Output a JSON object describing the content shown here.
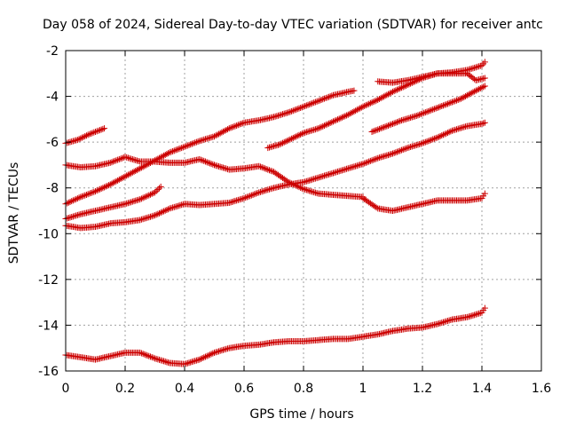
{
  "chart_data": {
    "type": "scatter",
    "title": "Day 058 of 2024, Sidereal Day-to-day VTEC variation (SDTVAR) for receiver antc",
    "xlabel": "GPS time / hours",
    "ylabel": "SDTVAR / TECUs",
    "xlim": [
      0,
      1.6
    ],
    "ylim": [
      -16,
      -2
    ],
    "xticks": [
      0,
      0.2,
      0.4,
      0.6,
      0.8,
      1,
      1.2,
      1.4,
      1.6
    ],
    "xtick_labels": [
      "0",
      "0.2",
      "0.4",
      "0.6",
      "0.8",
      "1",
      "1.2",
      "1.4",
      "1.6"
    ],
    "yticks": [
      -16,
      -14,
      -12,
      -10,
      -8,
      -6,
      -4,
      -2
    ],
    "ytick_labels": [
      "-16",
      "-14",
      "-12",
      "-10",
      "-8",
      "-6",
      "-4",
      "-2"
    ],
    "grid": true,
    "marker": "+",
    "marker_color": "#cc0000",
    "series": [
      {
        "name": "s1",
        "x": [
          0,
          0.04,
          0.08,
          0.12,
          0.13
        ],
        "y": [
          -6.05,
          -5.9,
          -5.65,
          -5.45,
          -5.4
        ]
      },
      {
        "name": "s2",
        "x": [
          0,
          0.05,
          0.1,
          0.15,
          0.2,
          0.25,
          0.3,
          0.35,
          0.4,
          0.45,
          0.5,
          0.55,
          0.6,
          0.65,
          0.7,
          0.75,
          0.8,
          0.85,
          0.9,
          0.95,
          0.97
        ],
        "y": [
          -8.7,
          -8.4,
          -8.15,
          -7.85,
          -7.5,
          -7.15,
          -6.8,
          -6.45,
          -6.2,
          -5.95,
          -5.75,
          -5.4,
          -5.15,
          -5.05,
          -4.9,
          -4.7,
          -4.45,
          -4.2,
          -3.95,
          -3.8,
          -3.75
        ]
      },
      {
        "name": "s3",
        "x": [
          0,
          0.05,
          0.1,
          0.15,
          0.2,
          0.25,
          0.3,
          0.35,
          0.4,
          0.45,
          0.5,
          0.55,
          0.6,
          0.65,
          0.7,
          0.75,
          0.8,
          0.85,
          0.9,
          0.95,
          1.0
        ],
        "y": [
          -7.0,
          -7.1,
          -7.05,
          -6.9,
          -6.65,
          -6.85,
          -6.85,
          -6.9,
          -6.9,
          -6.75,
          -7.0,
          -7.2,
          -7.15,
          -7.05,
          -7.3,
          -7.75,
          -8.05,
          -8.25,
          -8.3,
          -8.35,
          -8.4
        ]
      },
      {
        "name": "s4",
        "x": [
          1.0,
          1.05,
          1.1,
          1.15,
          1.2,
          1.25,
          1.3,
          1.35,
          1.4,
          1.41
        ],
        "y": [
          -8.45,
          -8.9,
          -9.0,
          -8.85,
          -8.7,
          -8.55,
          -8.55,
          -8.55,
          -8.45,
          -8.25
        ]
      },
      {
        "name": "s5",
        "x": [
          0,
          0.05,
          0.1,
          0.15,
          0.2,
          0.25,
          0.3,
          0.32
        ],
        "y": [
          -9.35,
          -9.15,
          -9.0,
          -8.85,
          -8.7,
          -8.5,
          -8.2,
          -7.95
        ]
      },
      {
        "name": "s6",
        "x": [
          0,
          0.05,
          0.1,
          0.15,
          0.2,
          0.25,
          0.3,
          0.35,
          0.4,
          0.45,
          0.5,
          0.55,
          0.6,
          0.65,
          0.7,
          0.75,
          0.8,
          0.85,
          0.9,
          0.95,
          1.0,
          1.05,
          1.1,
          1.15,
          1.2,
          1.25,
          1.3,
          1.35,
          1.4,
          1.41
        ],
        "y": [
          -9.65,
          -9.75,
          -9.7,
          -9.55,
          -9.5,
          -9.4,
          -9.2,
          -8.9,
          -8.7,
          -8.75,
          -8.7,
          -8.65,
          -8.45,
          -8.2,
          -8.0,
          -7.85,
          -7.75,
          -7.55,
          -7.35,
          -7.15,
          -6.95,
          -6.7,
          -6.5,
          -6.25,
          -6.05,
          -5.8,
          -5.5,
          -5.3,
          -5.2,
          -5.15
        ]
      },
      {
        "name": "s7",
        "x": [
          0,
          0.05,
          0.1,
          0.15,
          0.2,
          0.25,
          0.3,
          0.35,
          0.4,
          0.45,
          0.5,
          0.55,
          0.6,
          0.65,
          0.7,
          0.75,
          0.8,
          0.85,
          0.9,
          0.95,
          1.0,
          1.05,
          1.1,
          1.15,
          1.2,
          1.25,
          1.3,
          1.35,
          1.4,
          1.41
        ],
        "y": [
          -15.3,
          -15.4,
          -15.5,
          -15.35,
          -15.2,
          -15.2,
          -15.45,
          -15.65,
          -15.7,
          -15.5,
          -15.2,
          -15.0,
          -14.9,
          -14.85,
          -14.75,
          -14.7,
          -14.7,
          -14.65,
          -14.6,
          -14.6,
          -14.5,
          -14.4,
          -14.25,
          -14.15,
          -14.1,
          -13.95,
          -13.75,
          -13.65,
          -13.45,
          -13.25
        ]
      },
      {
        "name": "s8",
        "x": [
          0.68,
          0.72,
          0.76,
          0.8,
          0.85,
          0.9,
          0.95,
          1.0,
          1.05,
          1.1,
          1.15,
          1.2,
          1.25,
          1.3,
          1.35,
          1.4,
          1.41
        ],
        "y": [
          -6.25,
          -6.1,
          -5.85,
          -5.6,
          -5.4,
          -5.1,
          -4.8,
          -4.45,
          -4.15,
          -3.8,
          -3.5,
          -3.2,
          -3.0,
          -2.95,
          -2.85,
          -2.65,
          -2.5
        ]
      },
      {
        "name": "s9",
        "x": [
          1.05,
          1.1,
          1.15,
          1.2,
          1.25,
          1.3,
          1.35,
          1.38,
          1.41
        ],
        "y": [
          -3.35,
          -3.4,
          -3.3,
          -3.15,
          -3.0,
          -3.0,
          -3.0,
          -3.3,
          -3.2
        ]
      },
      {
        "name": "s10",
        "x": [
          1.03,
          1.08,
          1.13,
          1.18,
          1.23,
          1.28,
          1.33,
          1.38,
          1.41
        ],
        "y": [
          -5.55,
          -5.3,
          -5.05,
          -4.85,
          -4.6,
          -4.35,
          -4.1,
          -3.75,
          -3.55
        ]
      }
    ]
  }
}
